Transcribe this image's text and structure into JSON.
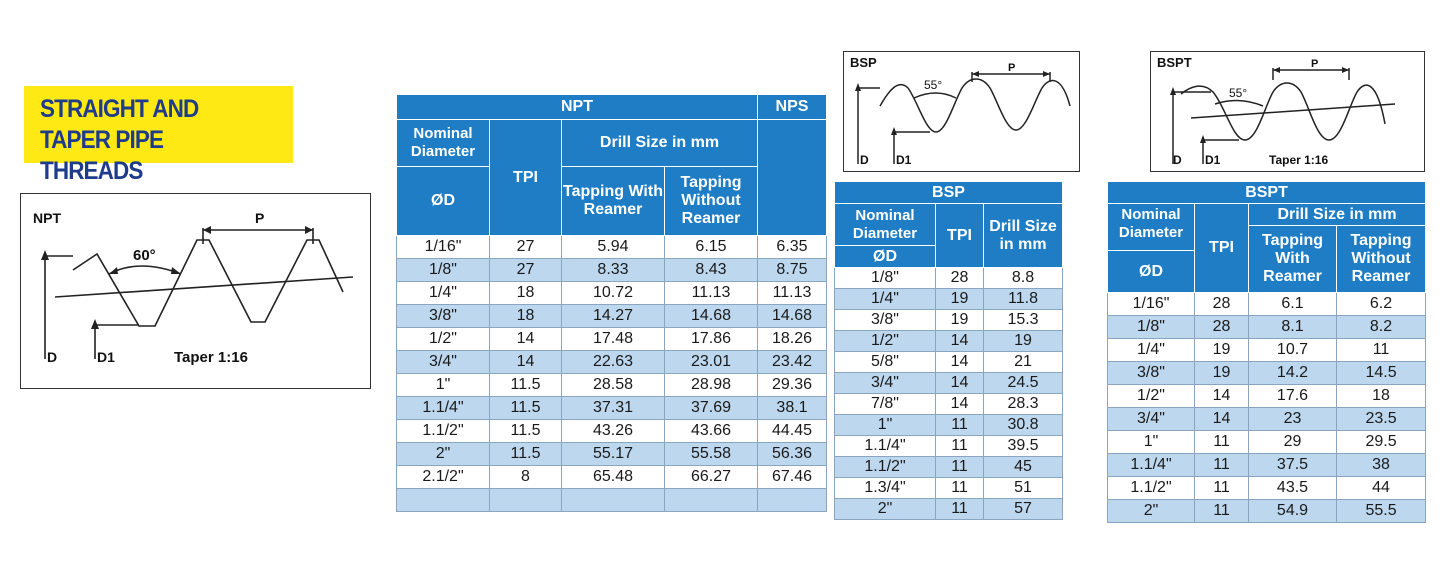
{
  "title": {
    "line1": "STRAIGHT AND",
    "line2": "TAPER PIPE THREADS"
  },
  "diagrams": {
    "npt": {
      "name": "NPT",
      "angle": "60°",
      "pitch": "P",
      "d": "D",
      "d1": "D1",
      "taper": "Taper 1:16"
    },
    "bsp": {
      "name": "BSP",
      "angle": "55°",
      "pitch": "P",
      "d": "D",
      "d1": "D1"
    },
    "bspt": {
      "name": "BSPT",
      "angle": "55°",
      "pitch": "P",
      "d": "D",
      "d1": "D1",
      "taper": "Taper 1:16"
    }
  },
  "npt_table": {
    "header_npt": "NPT",
    "header_nps": "NPS",
    "nominal": "Nominal Diameter",
    "od": "ØD",
    "tpi": "TPI",
    "drill": "Drill Size in mm",
    "tap_with": "Tapping With Reamer",
    "tap_without": "Tapping Without Reamer",
    "rows": [
      [
        "1/16\"",
        "27",
        "5.94",
        "6.15",
        "6.35"
      ],
      [
        "1/8\"",
        "27",
        "8.33",
        "8.43",
        "8.75"
      ],
      [
        "1/4\"",
        "18",
        "10.72",
        "11.13",
        "11.13"
      ],
      [
        "3/8\"",
        "18",
        "14.27",
        "14.68",
        "14.68"
      ],
      [
        "1/2\"",
        "14",
        "17.48",
        "17.86",
        "18.26"
      ],
      [
        "3/4\"",
        "14",
        "22.63",
        "23.01",
        "23.42"
      ],
      [
        "1\"",
        "11.5",
        "28.58",
        "28.98",
        "29.36"
      ],
      [
        "1.1/4\"",
        "11.5",
        "37.31",
        "37.69",
        "38.1"
      ],
      [
        "1.1/2\"",
        "11.5",
        "43.26",
        "43.66",
        "44.45"
      ],
      [
        "2\"",
        "11.5",
        "55.17",
        "55.58",
        "56.36"
      ],
      [
        "2.1/2\"",
        "8",
        "65.48",
        "66.27",
        "67.46"
      ],
      [
        "",
        "",
        "",
        "",
        ""
      ]
    ]
  },
  "bsp_table": {
    "header": "BSP",
    "nominal": "Nominal Diameter",
    "od": "ØD",
    "tpi": "TPI",
    "drill": "Drill Size in mm",
    "rows": [
      [
        "1/8\"",
        "28",
        "8.8"
      ],
      [
        "1/4\"",
        "19",
        "11.8"
      ],
      [
        "3/8\"",
        "19",
        "15.3"
      ],
      [
        "1/2\"",
        "14",
        "19"
      ],
      [
        "5/8\"",
        "14",
        "21"
      ],
      [
        "3/4\"",
        "14",
        "24.5"
      ],
      [
        "7/8\"",
        "14",
        "28.3"
      ],
      [
        "1\"",
        "11",
        "30.8"
      ],
      [
        "1.1/4\"",
        "11",
        "39.5"
      ],
      [
        "1.1/2\"",
        "11",
        "45"
      ],
      [
        "1.3/4\"",
        "11",
        "51"
      ],
      [
        "2\"",
        "11",
        "57"
      ]
    ]
  },
  "bspt_table": {
    "header": "BSPT",
    "nominal": "Nominal Diameter",
    "od": "ØD",
    "tpi": "TPI",
    "drill": "Drill Size in mm",
    "tap_with": "Tapping With Reamer",
    "tap_without": "Tapping Without Reamer",
    "rows": [
      [
        "1/16\"",
        "28",
        "6.1",
        "6.2"
      ],
      [
        "1/8\"",
        "28",
        "8.1",
        "8.2"
      ],
      [
        "1/4\"",
        "19",
        "10.7",
        "11"
      ],
      [
        "3/8\"",
        "19",
        "14.2",
        "14.5"
      ],
      [
        "1/2\"",
        "14",
        "17.6",
        "18"
      ],
      [
        "3/4\"",
        "14",
        "23",
        "23.5"
      ],
      [
        "1\"",
        "11",
        "29",
        "29.5"
      ],
      [
        "1.1/4\"",
        "11",
        "37.5",
        "38"
      ],
      [
        "1.1/2\"",
        "11",
        "43.5",
        "44"
      ],
      [
        "2\"",
        "11",
        "54.9",
        "55.5"
      ]
    ]
  }
}
